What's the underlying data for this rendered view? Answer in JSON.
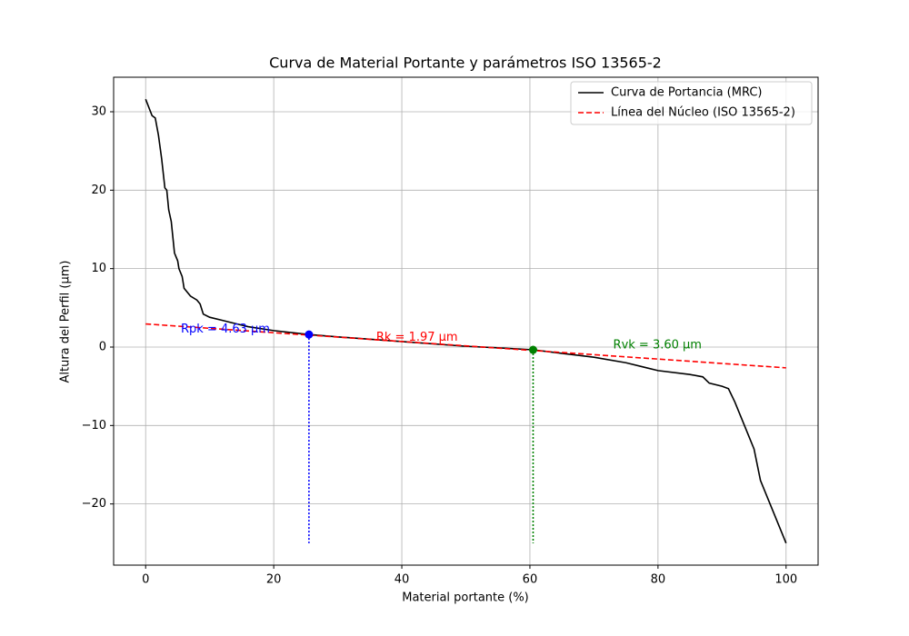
{
  "chart_data": {
    "type": "line",
    "title": "Curva de Material Portante y parámetros ISO 13565-2",
    "x_label": "Material portante (%)",
    "y_label": "Altura del Perfil (µm)",
    "xlim": [
      -5,
      105
    ],
    "ylim": [
      -27.8,
      34.4
    ],
    "xticks": [
      0,
      20,
      40,
      60,
      80,
      100
    ],
    "yticks": [
      {
        "value": -20,
        "label": "−20"
      },
      {
        "value": -10,
        "label": "−10"
      },
      0,
      10,
      20,
      30
    ],
    "grid": true,
    "legend": "upper right",
    "series": [
      {
        "name": "Curva de Portancia (MRC)",
        "color": "#000000",
        "dash": false,
        "x": [
          0,
          1,
          1.5,
          2,
          2.5,
          3,
          3.3,
          3.6,
          4,
          4.5,
          5,
          5.2,
          5.7,
          6,
          7,
          8,
          8.5,
          9,
          10,
          12,
          14,
          16,
          20,
          25.5,
          30,
          40,
          50,
          55,
          60.5,
          65,
          70,
          75,
          78,
          80,
          85,
          87,
          88,
          90,
          91,
          92,
          93,
          94,
          95,
          96,
          97,
          98,
          99,
          100
        ],
        "values": [
          31.6,
          29.5,
          29.2,
          27,
          24,
          20.3,
          20,
          17.5,
          16,
          12,
          11,
          10,
          9,
          7.5,
          6.5,
          6,
          5.5,
          4.2,
          3.8,
          3.4,
          3,
          2.6,
          2.1,
          1.6,
          1.3,
          0.7,
          0.1,
          -0.1,
          -0.35,
          -0.8,
          -1.3,
          -2,
          -2.6,
          -3,
          -3.5,
          -3.8,
          -4.6,
          -5,
          -5.3,
          -7,
          -9,
          -11,
          -13,
          -17,
          -19,
          -21,
          -23,
          -25
        ]
      },
      {
        "name": "Línea del Núcleo (ISO 13565-2)",
        "color": "#ff0000",
        "dash": true,
        "x": [
          0,
          100
        ],
        "values": [
          2.95,
          -2.65
        ]
      }
    ],
    "points": [
      {
        "x": 25.5,
        "y": 1.6,
        "color": "#0000ff",
        "drop_to": -25
      },
      {
        "x": 60.5,
        "y": -0.35,
        "color": "#008000",
        "drop_to": -25
      }
    ],
    "annotations": [
      {
        "text": "Rpk = 4.63 µm",
        "x": 5.5,
        "y": 2,
        "color": "#0000ff"
      },
      {
        "text": "Rk = 1.97 µm",
        "x": 36,
        "y": 1,
        "color": "#ff0000"
      },
      {
        "text": "Rvk = 3.60 µm",
        "x": 73,
        "y": 0,
        "color": "#008000"
      }
    ]
  }
}
